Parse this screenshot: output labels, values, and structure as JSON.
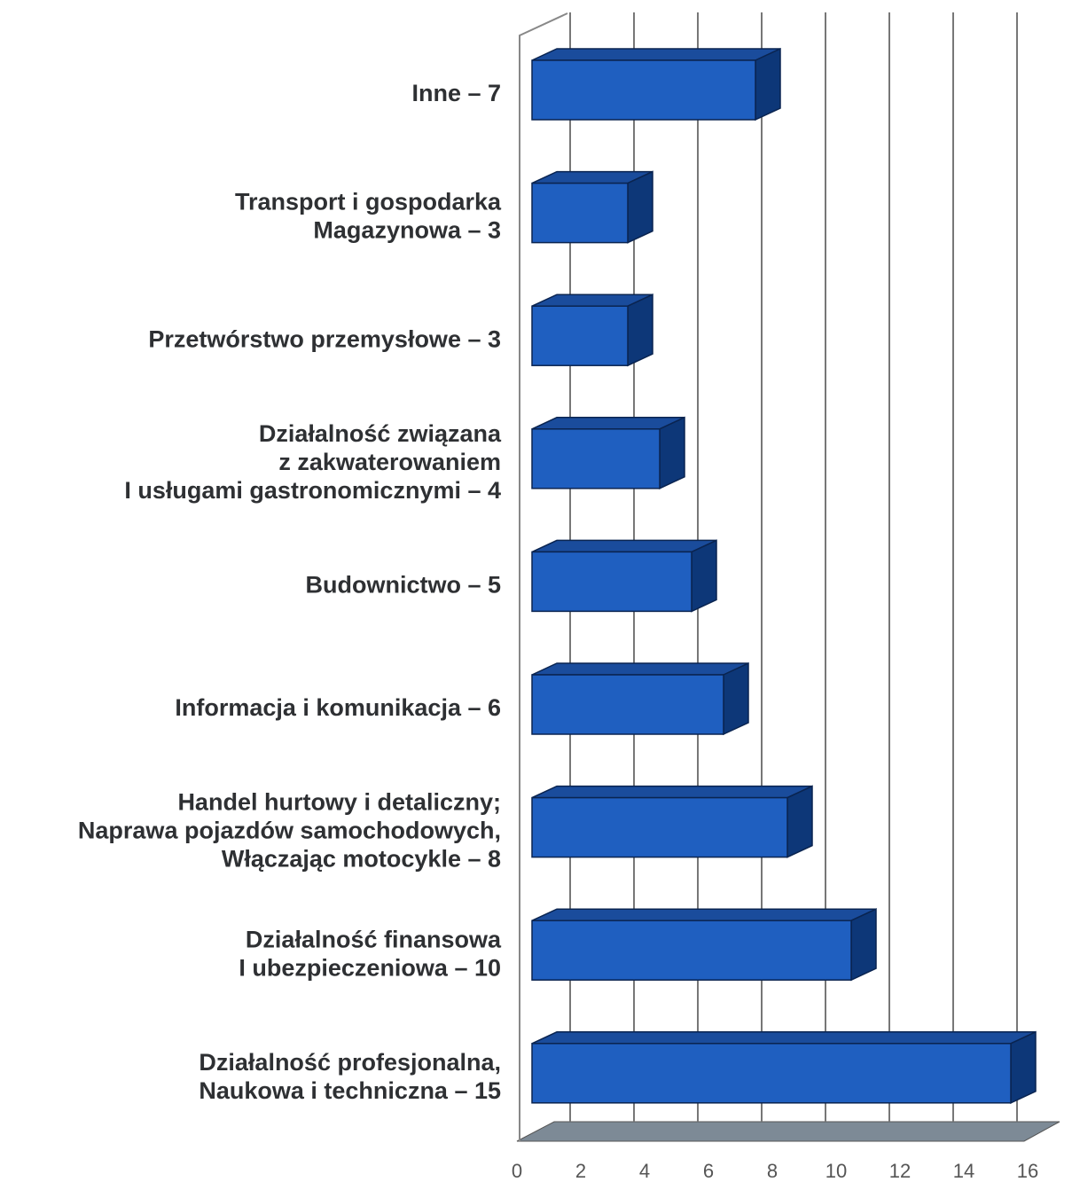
{
  "chart_data": {
    "type": "bar",
    "orientation": "horizontal",
    "three_d": true,
    "categories": [
      [
        "Inne – 7"
      ],
      [
        "Transport i gospodarka",
        "Magazynowa – 3"
      ],
      [
        "Przetwórstwo przemysłowe – 3"
      ],
      [
        "Działalność związana",
        "z zakwaterowaniem",
        "I usługami gastronomicznymi – 4"
      ],
      [
        "Budownictwo – 5"
      ],
      [
        "Informacja i komunikacja – 6"
      ],
      [
        "Handel hurtowy i detaliczny;",
        "Naprawa pojazdów samochodowych,",
        "Włączając motocykle – 8"
      ],
      [
        "Działalność finansowa",
        "I ubezpieczeniowa – 10"
      ],
      [
        "Działalność profesjonalna,",
        "Naukowa i techniczna – 15"
      ]
    ],
    "values": [
      7,
      3,
      3,
      4,
      5,
      6,
      8,
      10,
      15
    ],
    "color": "#1f5fc0",
    "xlim": [
      0,
      16
    ],
    "xticks": [
      0,
      2,
      4,
      6,
      8,
      10,
      12,
      14,
      16
    ],
    "grid": true
  }
}
